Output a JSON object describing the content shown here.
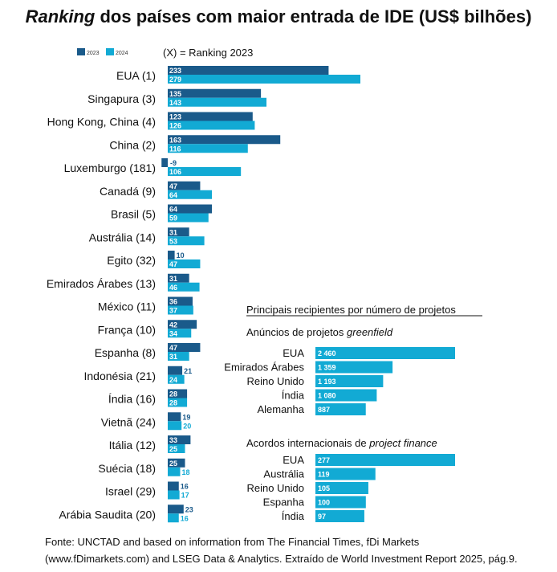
{
  "title": {
    "italic": "Ranking",
    "rest": " dos países com maior entrada de IDE (US$ bilhões)"
  },
  "legend": {
    "note": "(X) = Ranking 2023"
  },
  "colors": {
    "y2023": "#1a5a8a",
    "y2024": "#12aad4",
    "label2024": "#12aad4"
  },
  "source": {
    "line1": "Fonte: UNCTAD and based on information from The Financial Times, fDi Markets",
    "line2": "(www.fDimarkets.com) and LSEG Data & Analytics. Extraído de World Investment Report 2025, pág.9."
  },
  "chart_data": [
    {
      "type": "bar",
      "orientation": "horizontal",
      "title": "",
      "categories": [
        "EUA (1)",
        "Singapura (3)",
        "Hong Kong, China (4)",
        "China (2)",
        "Luxemburgo (181)",
        "Canadá (9)",
        "Brasil (5)",
        "Austrália (14)",
        "Egito (32)",
        "Emirados Árabes (13)",
        "México (11)",
        "França (10)",
        "Espanha (8)",
        "Indonésia (21)",
        "Índia (16)",
        "Vietnã (24)",
        "Itália (12)",
        "Suécia (18)",
        "Israel (29)",
        "Arábia Saudita (20)"
      ],
      "series": [
        {
          "name": "2023",
          "values": [
            233,
            135,
            123,
            163,
            -9,
            47,
            64,
            31,
            10,
            31,
            36,
            42,
            47,
            21,
            28,
            19,
            33,
            25,
            16,
            23
          ]
        },
        {
          "name": "2024",
          "values": [
            279,
            143,
            126,
            116,
            106,
            64,
            59,
            53,
            47,
            46,
            37,
            34,
            31,
            24,
            28,
            20,
            25,
            18,
            17,
            16
          ]
        }
      ]
    },
    {
      "type": "bar",
      "orientation": "horizontal",
      "heading": "Principais recipientes por número de projetos",
      "title": "Anúncios de projetos ",
      "title_italic": "greenfield",
      "categories": [
        "EUA",
        "Emirados Árabes",
        "Reino Unido",
        "Índia",
        "Alemanha"
      ],
      "values": [
        2460,
        1359,
        1193,
        1080,
        887
      ],
      "value_labels": [
        "2 460",
        "1 359",
        "1 193",
        "1 080",
        "887"
      ]
    },
    {
      "type": "bar",
      "orientation": "horizontal",
      "title": "Acordos internacionais de ",
      "title_italic": "project finance",
      "categories": [
        "EUA",
        "Austrália",
        "Reino Unido",
        "Espanha",
        "Índia"
      ],
      "values": [
        277,
        119,
        105,
        100,
        97
      ]
    }
  ]
}
